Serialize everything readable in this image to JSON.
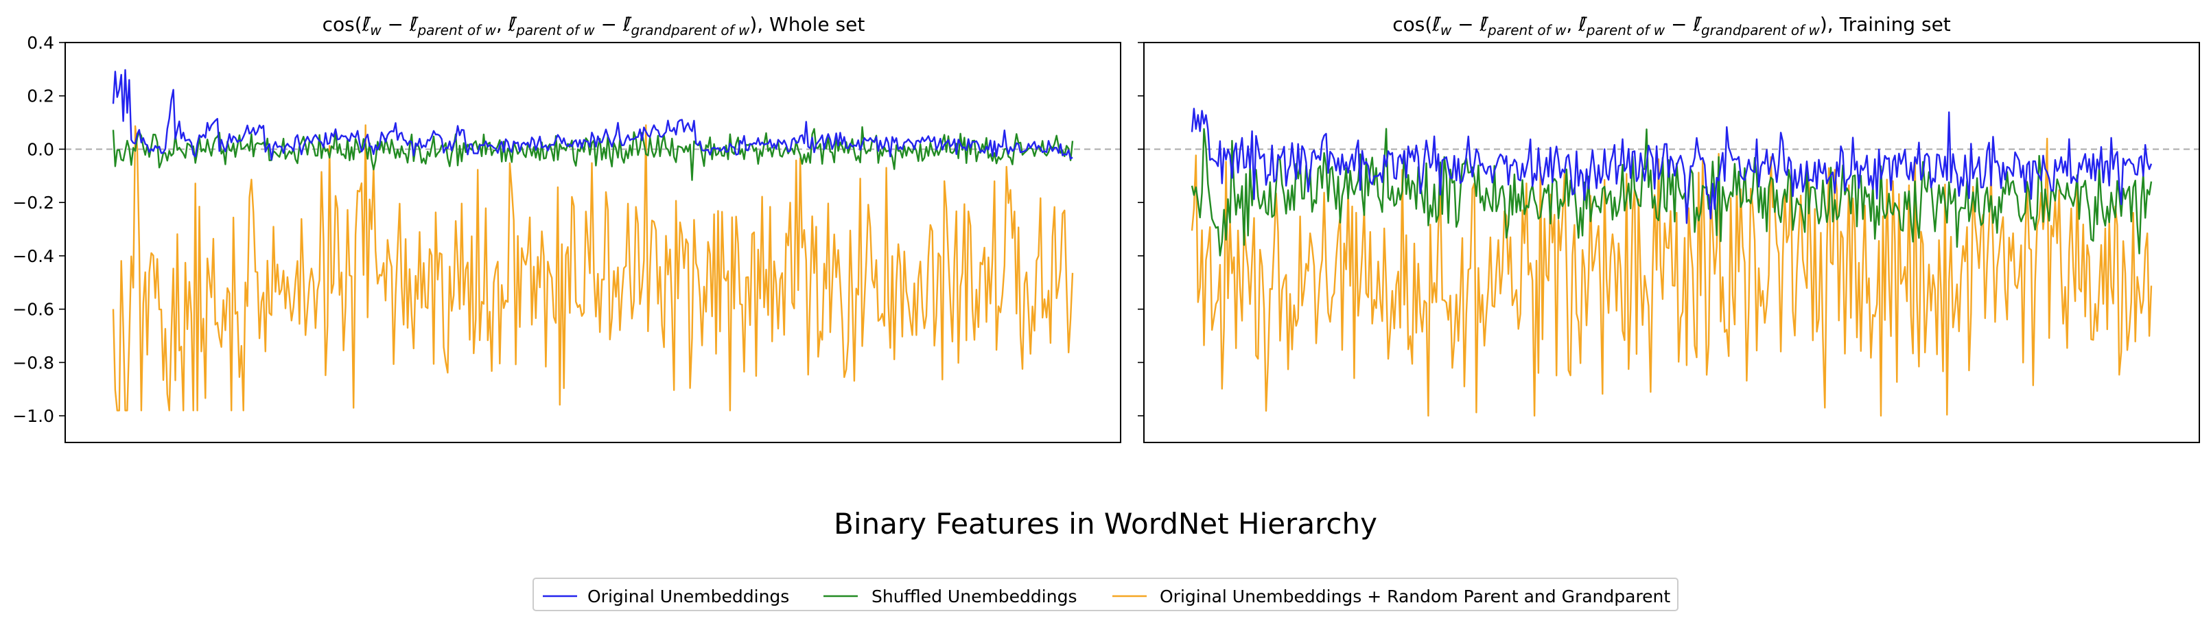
{
  "figure": {
    "suptitle": "Binary Features in WordNet Hierarchy"
  },
  "legend": {
    "placement": "bottom-center",
    "entries": [
      {
        "label": "Original Unembeddings",
        "color": "#2323ee"
      },
      {
        "label": "Shuffled Unembeddings",
        "color": "#228b22"
      },
      {
        "label": "Original Unembeddings + Random Parent and Grandparent",
        "color": "#f5a623"
      }
    ]
  },
  "chart_data": [
    {
      "type": "line",
      "title": "cos(ℓ̄w − ℓ̄parent of w, ℓ̄parent of w − ℓ̄grandparent of w), Whole set",
      "title_parts": {
        "prefix": "cos(",
        "lw": "ℓ̄",
        "w_sub": "w",
        "minus": " − ",
        "lp": "ℓ̄",
        "parent_sub": "parent of w",
        "comma": ", ",
        "lg": "ℓ̄",
        "grandparent_sub": "grandparent of w",
        "suffix": "), Whole set"
      },
      "xlabel": "",
      "ylabel": "",
      "ylim": [
        -1.1,
        0.4
      ],
      "yticks": [
        "0.4",
        "0.2",
        "0.0",
        "−0.2",
        "−0.4",
        "−0.6",
        "−0.8",
        "−1.0"
      ],
      "ytick_values": [
        0.4,
        0.2,
        0.0,
        -0.2,
        -0.4,
        -0.6,
        -0.8,
        -1.0
      ],
      "xticks_visible": false,
      "reference_line": {
        "y": 0.0,
        "style": "dashed",
        "color": "#aaaaaa"
      },
      "n_points": 480,
      "series": [
        {
          "name": "Original Unembeddings",
          "color": "#2323ee",
          "keypoints": [
            [
              0,
              0.14
            ],
            [
              1,
              0.28
            ],
            [
              2,
              0.2
            ],
            [
              3,
              0.25
            ],
            [
              4,
              0.29
            ],
            [
              5,
              0.12
            ],
            [
              6,
              0.3
            ],
            [
              7,
              0.15
            ],
            [
              8,
              0.27
            ],
            [
              9,
              0.05
            ],
            [
              10,
              0.02
            ],
            [
              14,
              0.04
            ],
            [
              18,
              0.0
            ],
            [
              22,
              0.02
            ],
            [
              26,
              0.01
            ],
            [
              30,
              0.22
            ],
            [
              31,
              0.05
            ],
            [
              33,
              0.08
            ],
            [
              40,
              0.0
            ],
            [
              52,
              0.12
            ],
            [
              53,
              0.01
            ],
            [
              75,
              0.09
            ],
            [
              76,
              0.0
            ],
            [
              120,
              0.05
            ],
            [
              130,
              0.0
            ],
            [
              140,
              0.07
            ],
            [
              150,
              0.01
            ],
            [
              160,
              0.05
            ],
            [
              170,
              0.0
            ],
            [
              175,
              0.11
            ],
            [
              176,
              0.0
            ],
            [
              200,
              0.02
            ],
            [
              250,
              0.04
            ],
            [
              290,
              0.09
            ],
            [
              291,
              0.0
            ],
            [
              350,
              0.03
            ],
            [
              400,
              0.02
            ],
            [
              479,
              0.0
            ]
          ],
          "noise": 0.018
        },
        {
          "name": "Shuffled Unembeddings",
          "color": "#228b22",
          "keypoints": [
            [
              0,
              0.04
            ],
            [
              1,
              -0.03
            ],
            [
              10,
              0.0
            ],
            [
              100,
              0.0
            ],
            [
              200,
              0.0
            ],
            [
              300,
              0.0
            ],
            [
              400,
              0.0
            ],
            [
              479,
              0.0
            ]
          ],
          "noise": 0.028
        },
        {
          "name": "Original Unembeddings + Random Parent and Grandparent",
          "color": "#f5a623",
          "keypoints": [
            [
              0,
              -0.72
            ],
            [
              10,
              -0.55
            ],
            [
              50,
              -0.6
            ],
            [
              100,
              -0.45
            ],
            [
              150,
              -0.5
            ],
            [
              200,
              -0.5
            ],
            [
              250,
              -0.45
            ],
            [
              300,
              -0.5
            ],
            [
              350,
              -0.48
            ],
            [
              400,
              -0.5
            ],
            [
              479,
              -0.45
            ]
          ],
          "noise": 0.19,
          "min": -0.98,
          "max": 0.09
        }
      ]
    },
    {
      "type": "line",
      "title": "cos(ℓ̄w − ℓ̄parent of w, ℓ̄parent of w − ℓ̄grandparent of w), Training set",
      "title_parts": {
        "prefix": "cos(",
        "lw": "ℓ̄",
        "w_sub": "w",
        "minus": " − ",
        "lp": "ℓ̄",
        "parent_sub": "parent of w",
        "comma": ", ",
        "lg": "ℓ̄",
        "grandparent_sub": "grandparent of w",
        "suffix": "), Training set"
      },
      "xlabel": "",
      "ylabel": "",
      "ylim": [
        -1.1,
        0.4
      ],
      "yticks_visible": false,
      "xticks_visible": false,
      "reference_line": {
        "y": 0.0,
        "style": "dashed",
        "color": "#aaaaaa"
      },
      "n_points": 480,
      "series": [
        {
          "name": "Original Unembeddings",
          "color": "#2323ee",
          "keypoints": [
            [
              0,
              0.1
            ],
            [
              3,
              0.1
            ],
            [
              5,
              0.17
            ],
            [
              6,
              0.05
            ],
            [
              7,
              0.19
            ],
            [
              9,
              0.0
            ],
            [
              12,
              -0.05
            ],
            [
              20,
              -0.05
            ],
            [
              60,
              -0.05
            ],
            [
              120,
              -0.05
            ],
            [
              160,
              -0.08
            ],
            [
              220,
              -0.06
            ],
            [
              300,
              -0.07
            ],
            [
              350,
              -0.08
            ],
            [
              400,
              -0.08
            ],
            [
              479,
              -0.07
            ]
          ],
          "noise": 0.05
        },
        {
          "name": "Shuffled Unembeddings",
          "color": "#228b22",
          "keypoints": [
            [
              0,
              -0.05
            ],
            [
              3,
              -0.25
            ],
            [
              6,
              -0.1
            ],
            [
              12,
              -0.3
            ],
            [
              20,
              -0.2
            ],
            [
              50,
              -0.15
            ],
            [
              100,
              -0.15
            ],
            [
              150,
              -0.18
            ],
            [
              200,
              -0.18
            ],
            [
              250,
              -0.17
            ],
            [
              300,
              -0.2
            ],
            [
              350,
              -0.2
            ],
            [
              400,
              -0.2
            ],
            [
              479,
              -0.2
            ]
          ],
          "noise": 0.07
        },
        {
          "name": "Original Unembeddings + Random Parent and Grandparent",
          "color": "#f5a623",
          "keypoints": [
            [
              0,
              -0.35
            ],
            [
              3,
              -0.75
            ],
            [
              10,
              -0.6
            ],
            [
              50,
              -0.55
            ],
            [
              100,
              -0.45
            ],
            [
              150,
              -0.5
            ],
            [
              200,
              -0.45
            ],
            [
              250,
              -0.5
            ],
            [
              300,
              -0.45
            ],
            [
              350,
              -0.5
            ],
            [
              400,
              -0.45
            ],
            [
              479,
              -0.5
            ]
          ],
          "noise": 0.19,
          "min": -1.0,
          "max": 0.04
        }
      ]
    }
  ]
}
